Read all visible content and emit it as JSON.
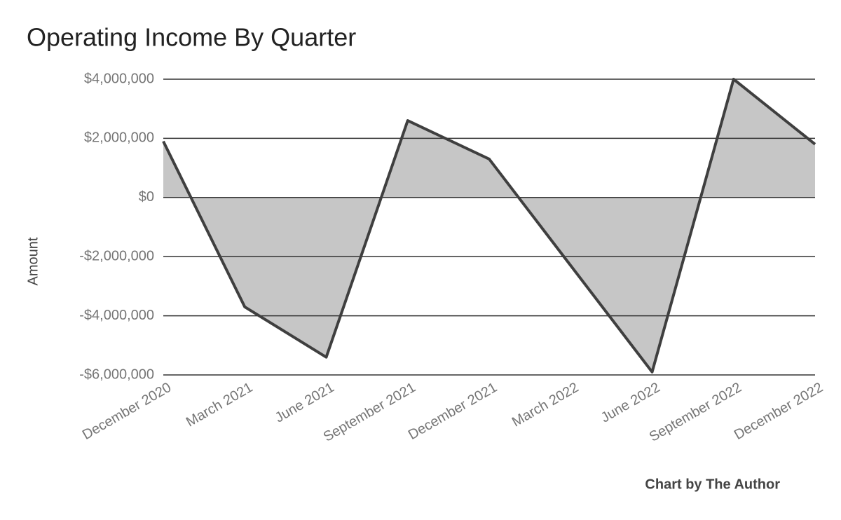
{
  "chart_data": {
    "type": "area",
    "title": "Operating Income By Quarter",
    "y_label": "Amount",
    "credit": "Chart by The Author",
    "categories": [
      "December 2020",
      "March 2021",
      "June 2021",
      "September 2021",
      "December 2021",
      "March 2022",
      "June 2022",
      "September 2022",
      "December 2022"
    ],
    "values": [
      1900000,
      -3700000,
      -5400000,
      2600000,
      1300000,
      -2300000,
      -5900000,
      4000000,
      1800000
    ],
    "color": "#c6c6c6",
    "line_color": "#3f3f3f",
    "ylim": [
      -6000000,
      4000000
    ],
    "yticks": [
      {
        "value": -6000000,
        "label": "-$6,000,000"
      },
      {
        "value": -4000000,
        "label": "-$4,000,000"
      },
      {
        "value": -2000000,
        "label": "-$2,000,000"
      },
      {
        "value": 0,
        "label": "$0"
      },
      {
        "value": 2000000,
        "label": "$2,000,000"
      },
      {
        "value": 4000000,
        "label": "$4,000,000"
      }
    ],
    "grid": true
  }
}
